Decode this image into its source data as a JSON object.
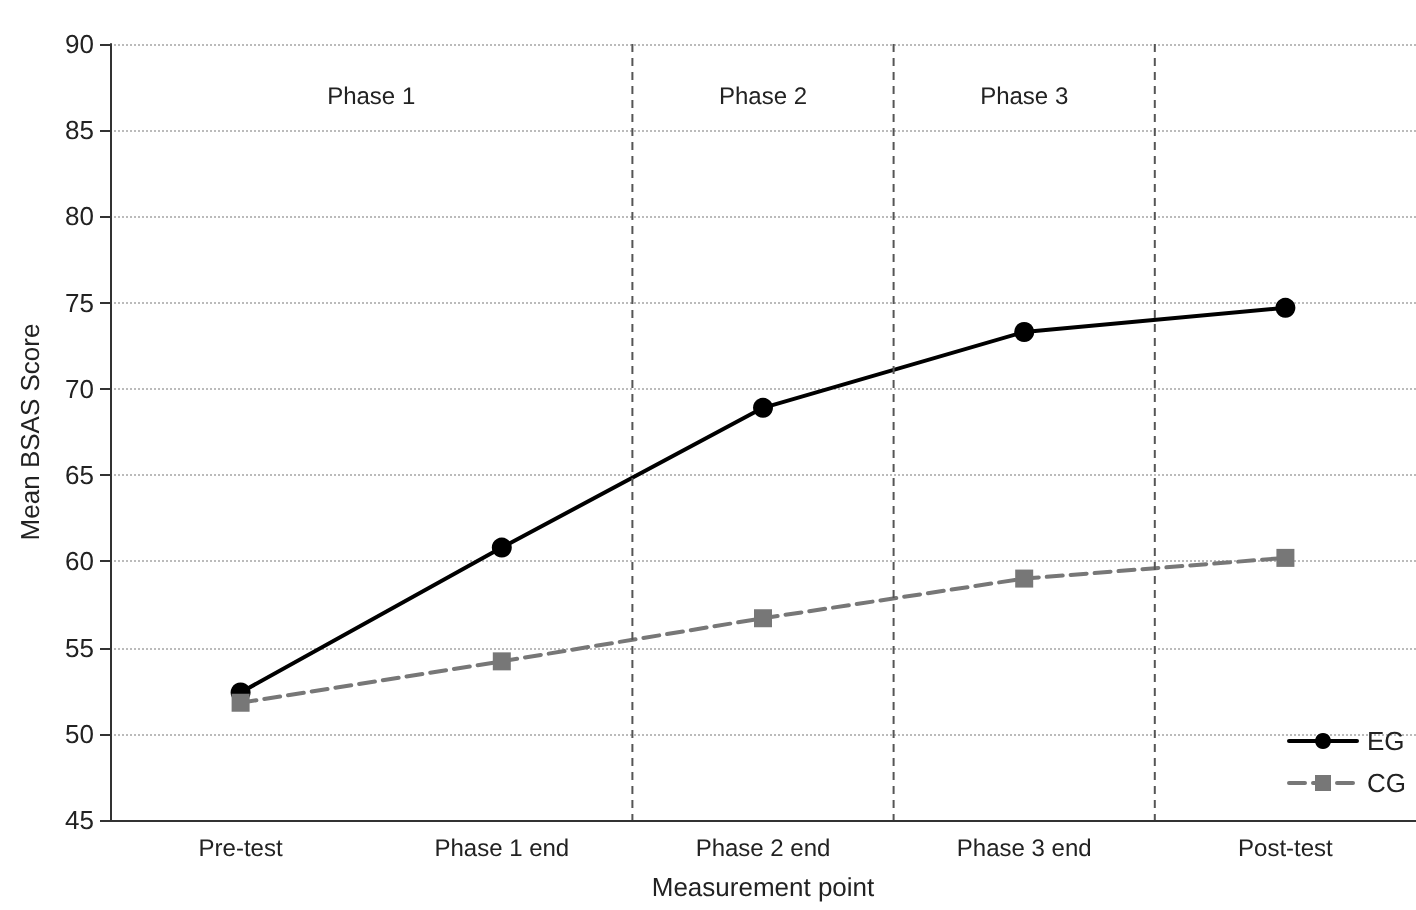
{
  "chart_data": {
    "type": "line",
    "xlabel": "Measurement point",
    "ylabel": "Mean BSAS Score",
    "categories": [
      "Pre-test",
      "Phase 1 end",
      "Phase 2 end",
      "Phase 3 end",
      "Post-test"
    ],
    "ylim": [
      45,
      90
    ],
    "yticks": [
      45,
      50,
      55,
      60,
      65,
      70,
      75,
      80,
      85,
      90
    ],
    "series": [
      {
        "name": "EG",
        "color": "#000000",
        "marker": "circle",
        "line_style": "solid",
        "values": [
          52.4,
          60.8,
          68.9,
          73.3,
          74.7
        ]
      },
      {
        "name": "CG",
        "color": "#777777",
        "marker": "square",
        "line_style": "dashed",
        "values": [
          51.8,
          54.2,
          56.7,
          59.0,
          60.2
        ]
      }
    ],
    "annotations": [
      "Phase 1",
      "Phase 2",
      "Phase 3"
    ],
    "grid": "y",
    "legend": "bottom right"
  }
}
